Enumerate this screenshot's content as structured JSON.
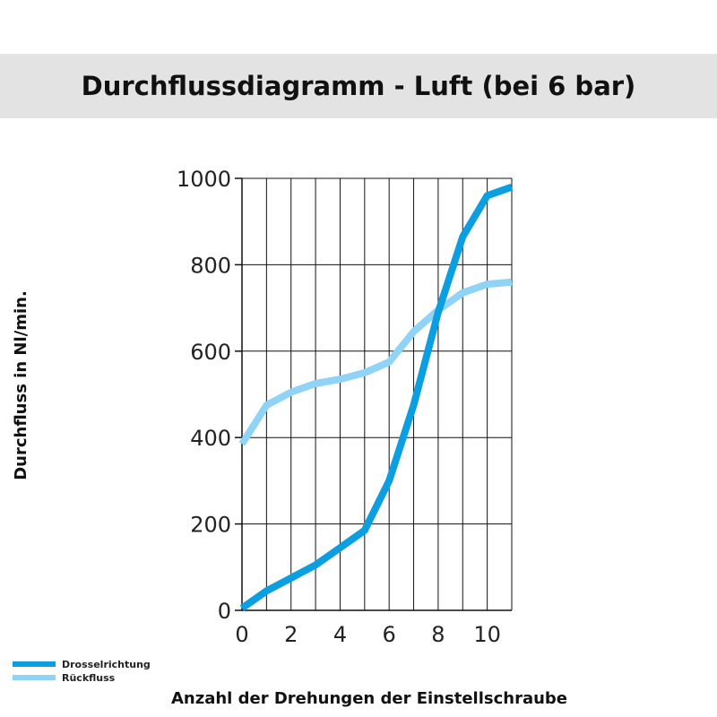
{
  "chart_data": {
    "type": "line",
    "title": "Durchflussdiagramm - Luft (bei 6 bar)",
    "xlabel": "Anzahl der Drehungen der Einstellschraube",
    "ylabel": "Durchfluss in Nl/min.",
    "xlim": [
      0,
      11
    ],
    "ylim": [
      0,
      1000
    ],
    "x_ticks": [
      0,
      2,
      4,
      6,
      8,
      10
    ],
    "y_ticks": [
      0,
      200,
      400,
      600,
      800,
      1000
    ],
    "grid": true,
    "legend_position": "bottom-left",
    "series": [
      {
        "name": "Drosselrichtung",
        "color": "#0b9ee0",
        "x": [
          0,
          1,
          2,
          3,
          4,
          5,
          6,
          7,
          8,
          9,
          10,
          11
        ],
        "y": [
          5,
          45,
          75,
          105,
          145,
          185,
          300,
          475,
          690,
          865,
          960,
          980
        ]
      },
      {
        "name": "Rückfluss",
        "color": "#8fd3f6",
        "x": [
          0,
          1,
          2,
          3,
          4,
          5,
          6,
          7,
          8,
          9,
          10,
          11
        ],
        "y": [
          385,
          475,
          505,
          525,
          535,
          550,
          575,
          645,
          695,
          735,
          755,
          760
        ]
      }
    ]
  }
}
